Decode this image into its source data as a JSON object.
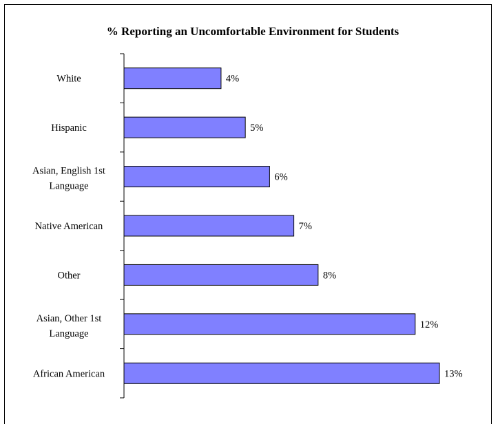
{
  "chart_data": {
    "type": "bar",
    "orientation": "horizontal",
    "title": "% Reporting an Uncomfortable Environment for Students",
    "categories": [
      "White",
      "Hispanic",
      "Asian, English 1st Language",
      "Native American",
      "Other",
      "Asian, Other 1st Language",
      "African American"
    ],
    "values": [
      4,
      5,
      6,
      7,
      8,
      12,
      13
    ],
    "value_labels": [
      "4%",
      "5%",
      "6%",
      "7%",
      "8%",
      "12%",
      "13%"
    ],
    "xlabel": "",
    "ylabel": "",
    "xlim": [
      0,
      13
    ],
    "grid": false,
    "bar_color": "#8080ff",
    "bar_edge_color": "#000000"
  }
}
